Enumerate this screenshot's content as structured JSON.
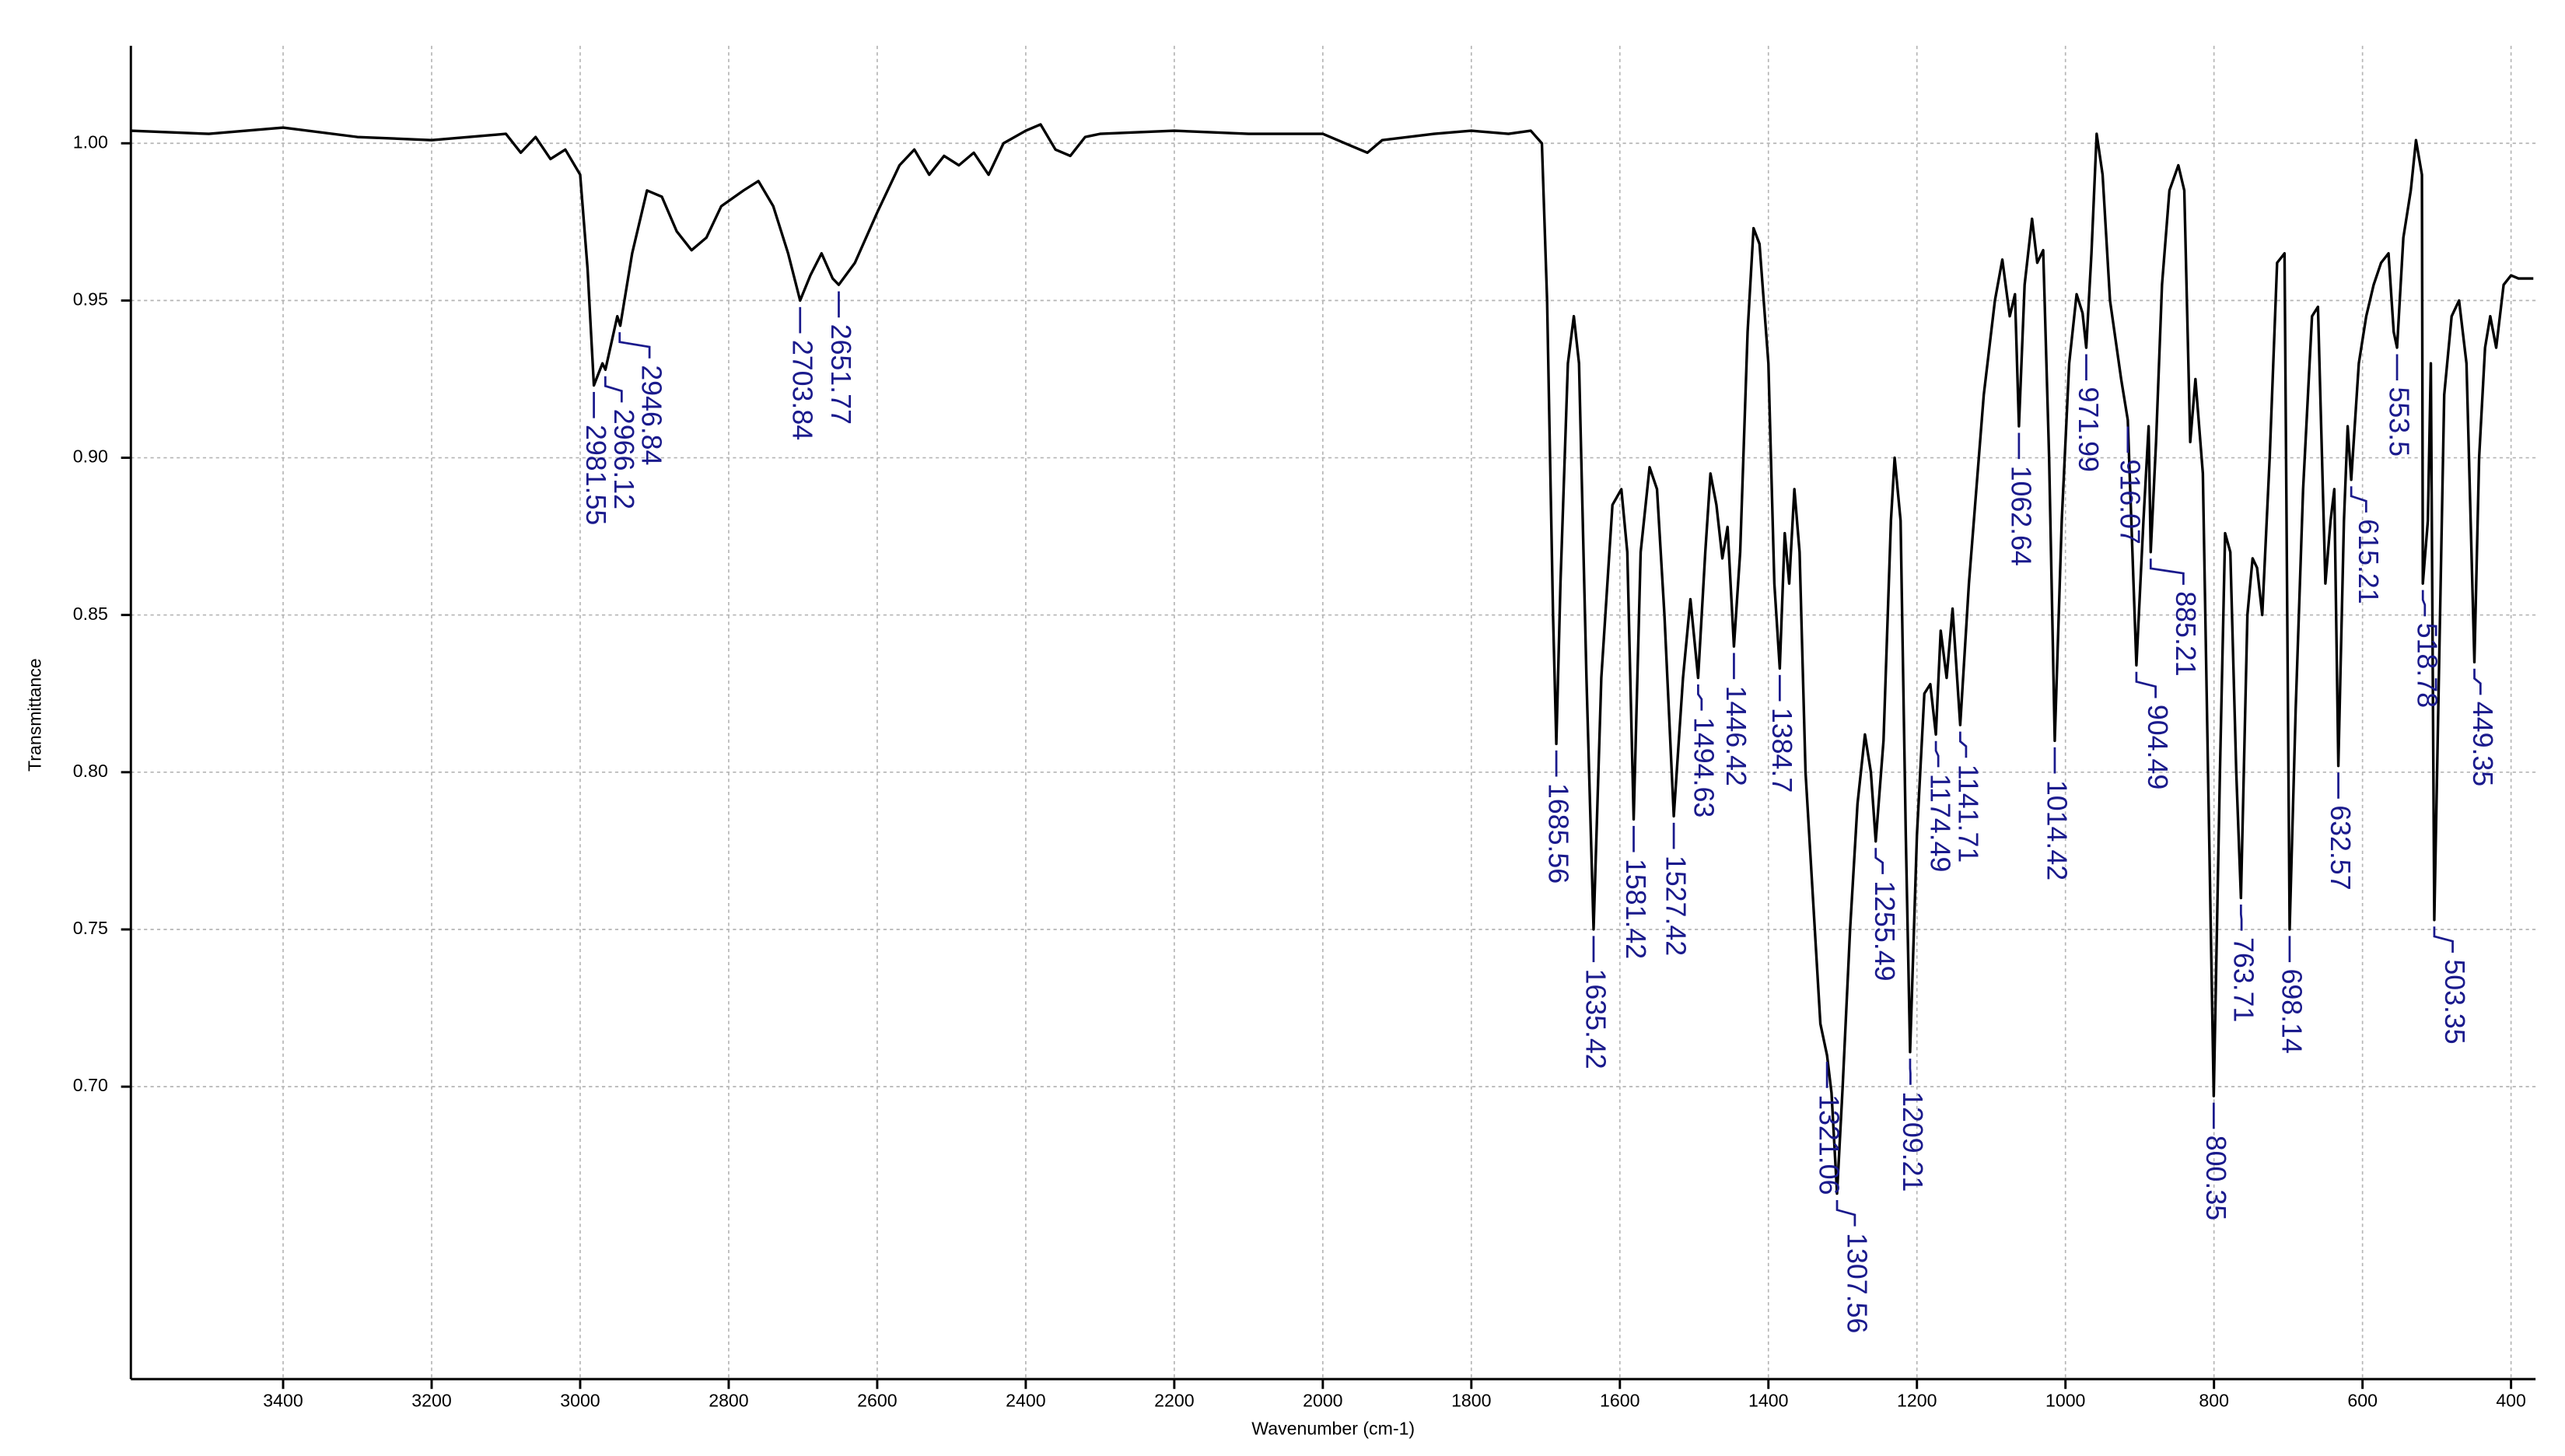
{
  "chart_data": {
    "type": "line",
    "x_label": "Wavenumber (cm-1)",
    "y_label": "Transmittance",
    "color": "#000000",
    "label_color": "#1a1a8c",
    "grid": true,
    "xlim": [
      3605,
      367
    ],
    "ylim": [
      0.607,
      1.031
    ],
    "xticks": [
      3400,
      3200,
      3000,
      2800,
      2600,
      2400,
      2200,
      2000,
      1800,
      1600,
      1400,
      1200,
      1000,
      800,
      600,
      400
    ],
    "yticks": [
      {
        "value": 0.7,
        "label": "0.70"
      },
      0.75,
      {
        "value": 0.8,
        "label": "0.80"
      },
      0.85,
      {
        "value": 0.9,
        "label": "0.90"
      },
      0.95,
      {
        "value": 1.0,
        "label": "1.00"
      }
    ],
    "x": [
      3605,
      3500,
      3400,
      3300,
      3200,
      3100,
      3080,
      3060,
      3040,
      3020,
      3000,
      2990,
      2981.55,
      2970,
      2966,
      2950,
      2946,
      2930,
      2910,
      2890,
      2870,
      2850,
      2830,
      2810,
      2780,
      2760,
      2740,
      2720,
      2703.84,
      2690,
      2675,
      2660,
      2651.77,
      2630,
      2600,
      2570,
      2550,
      2530,
      2510,
      2490,
      2470,
      2450,
      2430,
      2400,
      2380,
      2360,
      2340,
      2320,
      2300,
      2200,
      2100,
      2000,
      1960,
      1940,
      1920,
      1850,
      1800,
      1750,
      1720,
      1705,
      1698,
      1690,
      1685.56,
      1680,
      1670,
      1662,
      1655,
      1645,
      1635.42,
      1625,
      1610,
      1598,
      1590,
      1581.42,
      1572,
      1560,
      1550,
      1540,
      1527.42,
      1515,
      1505,
      1494.63,
      1485,
      1478,
      1470,
      1462,
      1455,
      1446.42,
      1438,
      1428,
      1420,
      1412,
      1400,
      1392,
      1384.7,
      1378,
      1372,
      1365,
      1358,
      1350,
      1340,
      1330,
      1321.06,
      1315,
      1307.56,
      1300,
      1290,
      1280,
      1270,
      1262,
      1255.49,
      1245,
      1235,
      1230,
      1222,
      1215,
      1209.21,
      1200,
      1190,
      1182,
      1174.49,
      1168,
      1160,
      1152,
      1141.71,
      1130,
      1110,
      1095,
      1085,
      1075,
      1068,
      1062.64,
      1055,
      1045,
      1038,
      1030,
      1022,
      1014.42,
      1005,
      995,
      985,
      977,
      971.99,
      965,
      958,
      950,
      940,
      925,
      916.07,
      904.49,
      895,
      888,
      885.21,
      878,
      870,
      860,
      848,
      840,
      832,
      825,
      815,
      808,
      800.35,
      792,
      785,
      778,
      770,
      763.71,
      755,
      748,
      742,
      735,
      725,
      715,
      705,
      698.14,
      690,
      680,
      668,
      660,
      650,
      643,
      638,
      632.57,
      625,
      620,
      615.21,
      605,
      595,
      585,
      575,
      565,
      558,
      553.5,
      545,
      535,
      528,
      520,
      518.78,
      512,
      508,
      503.35,
      498,
      490,
      480,
      470,
      460,
      449.35,
      443,
      435,
      428,
      420,
      410,
      400,
      390,
      370
    ],
    "values": [
      1.004,
      1.003,
      1.005,
      1.002,
      1.001,
      1.003,
      0.997,
      1.002,
      0.995,
      0.998,
      0.99,
      0.96,
      0.923,
      0.93,
      0.928,
      0.945,
      0.942,
      0.965,
      0.985,
      0.983,
      0.972,
      0.966,
      0.97,
      0.98,
      0.985,
      0.988,
      0.98,
      0.965,
      0.95,
      0.958,
      0.965,
      0.957,
      0.955,
      0.962,
      0.978,
      0.993,
      0.998,
      0.99,
      0.996,
      0.993,
      0.997,
      0.99,
      1.0,
      1.004,
      1.006,
      0.998,
      0.996,
      1.002,
      1.003,
      1.004,
      1.003,
      1.003,
      0.999,
      0.997,
      1.001,
      1.003,
      1.004,
      1.003,
      1.004,
      1.0,
      0.95,
      0.85,
      0.809,
      0.86,
      0.93,
      0.945,
      0.93,
      0.83,
      0.75,
      0.83,
      0.885,
      0.89,
      0.87,
      0.785,
      0.87,
      0.897,
      0.89,
      0.85,
      0.786,
      0.83,
      0.855,
      0.83,
      0.87,
      0.895,
      0.885,
      0.868,
      0.878,
      0.84,
      0.87,
      0.94,
      0.973,
      0.968,
      0.93,
      0.86,
      0.833,
      0.876,
      0.86,
      0.89,
      0.87,
      0.8,
      0.76,
      0.72,
      0.71,
      0.698,
      0.666,
      0.7,
      0.75,
      0.79,
      0.812,
      0.8,
      0.778,
      0.81,
      0.88,
      0.9,
      0.88,
      0.78,
      0.711,
      0.78,
      0.825,
      0.828,
      0.812,
      0.845,
      0.83,
      0.852,
      0.815,
      0.86,
      0.92,
      0.95,
      0.963,
      0.945,
      0.952,
      0.91,
      0.955,
      0.976,
      0.962,
      0.966,
      0.9,
      0.81,
      0.88,
      0.93,
      0.952,
      0.946,
      0.935,
      0.965,
      1.003,
      0.99,
      0.95,
      0.925,
      0.912,
      0.834,
      0.88,
      0.91,
      0.87,
      0.905,
      0.955,
      0.985,
      0.993,
      0.985,
      0.905,
      0.925,
      0.895,
      0.8,
      0.697,
      0.8,
      0.876,
      0.87,
      0.8,
      0.76,
      0.85,
      0.868,
      0.865,
      0.85,
      0.9,
      0.962,
      0.965,
      0.75,
      0.82,
      0.89,
      0.945,
      0.948,
      0.86,
      0.88,
      0.89,
      0.802,
      0.88,
      0.91,
      0.893,
      0.93,
      0.945,
      0.955,
      0.962,
      0.965,
      0.94,
      0.935,
      0.97,
      0.985,
      1.001,
      0.99,
      0.86,
      0.88,
      0.93,
      0.753,
      0.82,
      0.92,
      0.945,
      0.95,
      0.93,
      0.835,
      0.9,
      0.935,
      0.945,
      0.935,
      0.955,
      0.958,
      0.957,
      0.957
    ],
    "peaks": [
      {
        "x": 2981.55,
        "y": 0.923
      },
      {
        "x": 2966.12,
        "y": 0.928
      },
      {
        "x": 2946.84,
        "y": 0.942
      },
      {
        "x": 2703.84,
        "y": 0.95
      },
      {
        "x": 2651.77,
        "y": 0.955
      },
      {
        "x": 1685.56,
        "y": 0.809
      },
      {
        "x": 1635.42,
        "y": 0.75
      },
      {
        "x": 1581.42,
        "y": 0.785
      },
      {
        "x": 1527.42,
        "y": 0.786
      },
      {
        "x": 1494.63,
        "y": 0.83
      },
      {
        "x": 1446.42,
        "y": 0.84
      },
      {
        "x": 1384.7,
        "y": 0.833
      },
      {
        "x": 1321.06,
        "y": 0.71
      },
      {
        "x": 1307.56,
        "y": 0.666
      },
      {
        "x": 1255.49,
        "y": 0.778
      },
      {
        "x": 1209.21,
        "y": 0.711
      },
      {
        "x": 1174.49,
        "y": 0.812
      },
      {
        "x": 1141.71,
        "y": 0.815
      },
      {
        "x": 1062.64,
        "y": 0.91
      },
      {
        "x": 1014.42,
        "y": 0.81
      },
      {
        "x": 971.99,
        "y": 0.935
      },
      {
        "x": 916.07,
        "y": 0.912
      },
      {
        "x": 904.49,
        "y": 0.834
      },
      {
        "x": 885.21,
        "y": 0.87
      },
      {
        "x": 800.35,
        "y": 0.697
      },
      {
        "x": 763.71,
        "y": 0.76
      },
      {
        "x": 698.14,
        "y": 0.75
      },
      {
        "x": 632.57,
        "y": 0.802
      },
      {
        "x": 615.21,
        "y": 0.893
      },
      {
        "x": 553.5,
        "y": 0.935
      },
      {
        "x": 518.78,
        "y": 0.86
      },
      {
        "x": 503.35,
        "y": 0.753
      },
      {
        "x": 449.35,
        "y": 0.835
      }
    ]
  }
}
